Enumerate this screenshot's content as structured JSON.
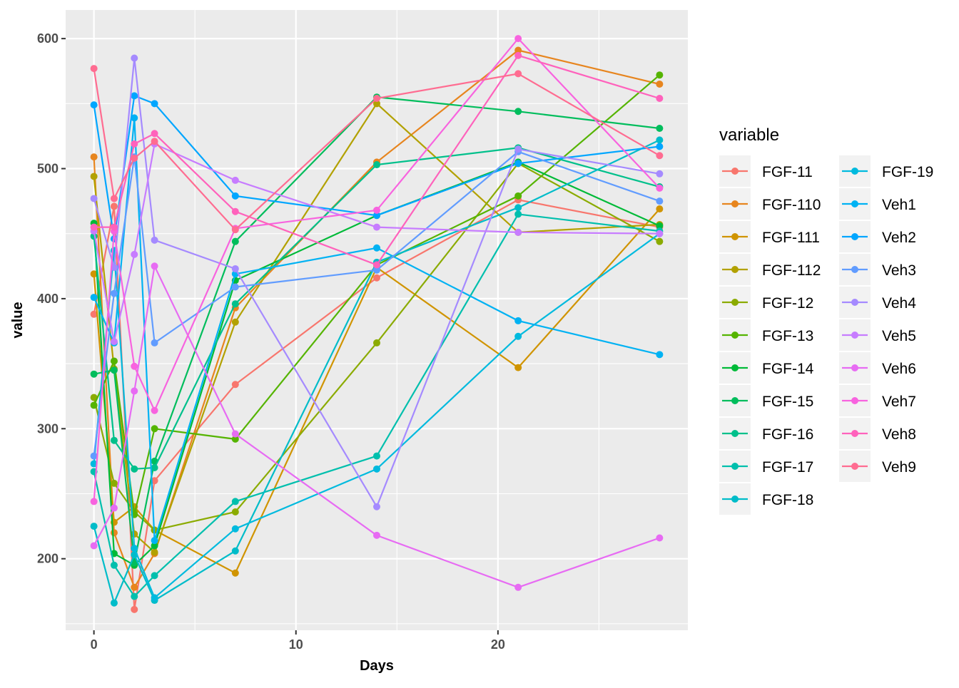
{
  "chart_data": {
    "type": "line",
    "title": "",
    "xlabel": "Days",
    "ylabel": "value",
    "xlim": [
      -1.4,
      29.4
    ],
    "ylim": [
      145,
      622
    ],
    "x_ticks": [
      0,
      10,
      20
    ],
    "y_ticks": [
      200,
      300,
      400,
      500,
      600
    ],
    "legend_title": "variable",
    "legend_position": "right",
    "grid": true,
    "series": [
      {
        "name": "FGF-11",
        "color": "#F8766D",
        "points": [
          [
            0,
            388
          ],
          [
            1,
            471
          ],
          [
            2,
            161
          ],
          [
            3,
            260
          ],
          [
            7,
            334
          ],
          [
            14,
            416
          ],
          [
            21,
            476
          ],
          [
            28,
            455
          ]
        ]
      },
      {
        "name": "FGF-110",
        "color": "#E7851E",
        "points": [
          [
            0,
            509
          ],
          [
            1,
            220
          ],
          [
            2,
            178
          ],
          [
            3,
            204
          ],
          [
            7,
            393
          ],
          [
            14,
            505
          ],
          [
            21,
            591
          ],
          [
            28,
            565
          ]
        ]
      },
      {
        "name": "FGF-111",
        "color": "#D09400",
        "points": [
          [
            0,
            419
          ],
          [
            1,
            228
          ],
          [
            2,
            240
          ],
          [
            3,
            222
          ],
          [
            7,
            189
          ],
          [
            14,
            424
          ],
          [
            21,
            347
          ],
          [
            28,
            469
          ]
        ]
      },
      {
        "name": "FGF-112",
        "color": "#B2A100",
        "points": [
          [
            0,
            494
          ],
          [
            1,
            346
          ],
          [
            2,
            219
          ],
          [
            3,
            205
          ],
          [
            7,
            382
          ],
          [
            14,
            550
          ],
          [
            21,
            451
          ],
          [
            28,
            457
          ]
        ]
      },
      {
        "name": "FGF-12",
        "color": "#8BAB00",
        "points": [
          [
            0,
            324
          ],
          [
            1,
            258
          ],
          [
            2,
            236
          ],
          [
            3,
            222
          ],
          [
            7,
            236
          ],
          [
            14,
            366
          ],
          [
            21,
            504
          ],
          [
            28,
            444
          ]
        ]
      },
      {
        "name": "FGF-13",
        "color": "#55B400",
        "points": [
          [
            0,
            318
          ],
          [
            1,
            352
          ],
          [
            2,
            234
          ],
          [
            3,
            300
          ],
          [
            7,
            292
          ],
          [
            14,
            426
          ],
          [
            21,
            479
          ],
          [
            28,
            572
          ]
        ]
      },
      {
        "name": "FGF-14",
        "color": "#00BA38",
        "points": [
          [
            0,
            458
          ],
          [
            1,
            204
          ],
          [
            2,
            195
          ],
          [
            3,
            210
          ],
          [
            7,
            414
          ],
          [
            14,
            464
          ],
          [
            21,
            505
          ],
          [
            28,
            456
          ]
        ]
      },
      {
        "name": "FGF-15",
        "color": "#00BD5C",
        "points": [
          [
            0,
            342
          ],
          [
            1,
            345
          ],
          [
            2,
            197
          ],
          [
            3,
            275
          ],
          [
            7,
            444
          ],
          [
            14,
            555
          ],
          [
            21,
            544
          ],
          [
            28,
            531
          ]
        ]
      },
      {
        "name": "FGF-16",
        "color": "#00C08B",
        "points": [
          [
            0,
            448
          ],
          [
            1,
            291
          ],
          [
            2,
            269
          ],
          [
            3,
            270
          ],
          [
            7,
            396
          ],
          [
            14,
            503
          ],
          [
            21,
            516
          ],
          [
            28,
            486
          ]
        ]
      },
      {
        "name": "FGF-17",
        "color": "#00BFAD",
        "points": [
          [
            0,
            267
          ],
          [
            1,
            195
          ],
          [
            2,
            171
          ],
          [
            3,
            187
          ],
          [
            7,
            244
          ],
          [
            14,
            279
          ],
          [
            21,
            465
          ],
          [
            28,
            452
          ]
        ]
      },
      {
        "name": "FGF-18",
        "color": "#00BCC9",
        "points": [
          [
            0,
            225
          ],
          [
            1,
            166
          ],
          [
            2,
            203
          ],
          [
            3,
            168
          ],
          [
            7,
            206
          ],
          [
            14,
            428
          ],
          [
            21,
            470
          ],
          [
            28,
            522
          ]
        ]
      },
      {
        "name": "FGF-19",
        "color": "#00BADE",
        "points": [
          [
            0,
            273
          ],
          [
            1,
            437
          ],
          [
            2,
            208
          ],
          [
            3,
            170
          ],
          [
            7,
            223
          ],
          [
            14,
            269
          ],
          [
            21,
            371
          ],
          [
            28,
            450
          ]
        ]
      },
      {
        "name": "Veh1",
        "color": "#00B2F3",
        "points": [
          [
            0,
            401
          ],
          [
            1,
            366
          ],
          [
            2,
            539
          ],
          [
            3,
            214
          ],
          [
            7,
            419
          ],
          [
            14,
            439
          ],
          [
            21,
            383
          ],
          [
            28,
            357
          ]
        ]
      },
      {
        "name": "Veh2",
        "color": "#00A6FF",
        "points": [
          [
            0,
            549
          ],
          [
            1,
            446
          ],
          [
            2,
            556
          ],
          [
            3,
            550
          ],
          [
            7,
            479
          ],
          [
            14,
            464
          ],
          [
            21,
            504
          ],
          [
            28,
            517
          ]
        ]
      },
      {
        "name": "Veh3",
        "color": "#619CFF",
        "points": [
          [
            0,
            279
          ],
          [
            1,
            404
          ],
          [
            2,
            509
          ],
          [
            3,
            366
          ],
          [
            7,
            409
          ],
          [
            14,
            422
          ],
          [
            21,
            513
          ],
          [
            28,
            475
          ]
        ]
      },
      {
        "name": "Veh4",
        "color": "#A58AFF",
        "points": [
          [
            0,
            477
          ],
          [
            1,
            424
          ],
          [
            2,
            585
          ],
          [
            3,
            445
          ],
          [
            7,
            423
          ],
          [
            14,
            240
          ],
          [
            21,
            515
          ],
          [
            28,
            496
          ]
        ]
      },
      {
        "name": "Veh5",
        "color": "#C77CFF",
        "points": [
          [
            0,
            452
          ],
          [
            1,
            367
          ],
          [
            2,
            434
          ],
          [
            3,
            519
          ],
          [
            7,
            491
          ],
          [
            14,
            455
          ],
          [
            21,
            451
          ],
          [
            28,
            450
          ]
        ]
      },
      {
        "name": "Veh6",
        "color": "#E76BF3",
        "points": [
          [
            0,
            210
          ],
          [
            1,
            239
          ],
          [
            2,
            329
          ],
          [
            3,
            425
          ],
          [
            7,
            296
          ],
          [
            14,
            218
          ],
          [
            21,
            178
          ],
          [
            28,
            216
          ]
        ]
      },
      {
        "name": "Veh7",
        "color": "#F863DF",
        "points": [
          [
            0,
            244
          ],
          [
            1,
            452
          ],
          [
            2,
            348
          ],
          [
            3,
            314
          ],
          [
            7,
            454
          ],
          [
            14,
            468
          ],
          [
            21,
            600
          ],
          [
            28,
            485
          ]
        ]
      },
      {
        "name": "Veh8",
        "color": "#FF62BC",
        "points": [
          [
            0,
            455
          ],
          [
            1,
            455
          ],
          [
            2,
            519
          ],
          [
            3,
            527
          ],
          [
            7,
            467
          ],
          [
            14,
            426
          ],
          [
            21,
            587
          ],
          [
            28,
            554
          ]
        ]
      },
      {
        "name": "Veh9",
        "color": "#FF6C91",
        "points": [
          [
            0,
            577
          ],
          [
            1,
            477
          ],
          [
            2,
            508
          ],
          [
            3,
            521
          ],
          [
            7,
            453
          ],
          [
            14,
            554
          ],
          [
            21,
            573
          ],
          [
            28,
            510
          ]
        ]
      }
    ]
  }
}
